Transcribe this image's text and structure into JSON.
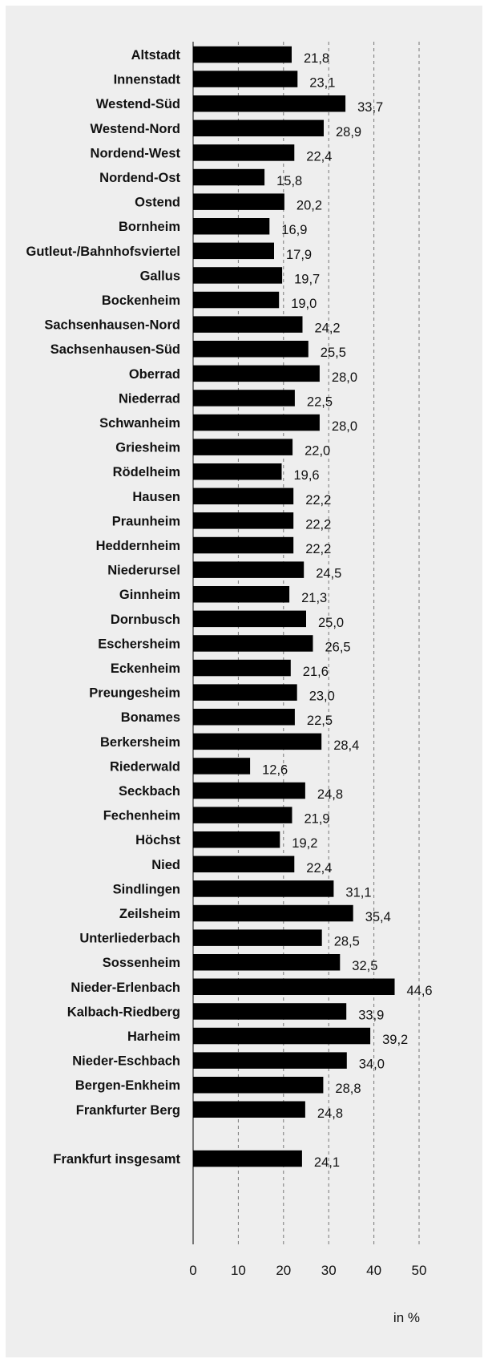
{
  "chart_data": {
    "type": "bar",
    "orientation": "horizontal",
    "categories": [
      "Altstadt",
      "Innenstadt",
      "Westend-Süd",
      "Westend-Nord",
      "Nordend-West",
      "Nordend-Ost",
      "Ostend",
      "Bornheim",
      "Gutleut-/Bahnhofsviertel",
      "Gallus",
      "Bockenheim",
      "Sachsenhausen-Nord",
      "Sachsenhausen-Süd",
      "Oberrad",
      "Niederrad",
      "Schwanheim",
      "Griesheim",
      "Rödelheim",
      "Hausen",
      "Praunheim",
      "Heddernheim",
      "Niederursel",
      "Ginnheim",
      "Dornbusch",
      "Eschersheim",
      "Eckenheim",
      "Preungesheim",
      "Bonames",
      "Berkersheim",
      "Riederwald",
      "Seckbach",
      "Fechenheim",
      "Höchst",
      "Nied",
      "Sindlingen",
      "Zeilsheim",
      "Unterliederbach",
      "Sossenheim",
      "Nieder-Erlenbach",
      "Kalbach-Riedberg",
      "Harheim",
      "Nieder-Eschbach",
      "Bergen-Enkheim",
      "Frankfurter Berg",
      "Frankfurt insgesamt"
    ],
    "values": [
      21.8,
      23.1,
      33.7,
      28.9,
      22.4,
      15.8,
      20.2,
      16.9,
      17.9,
      19.7,
      19.0,
      24.2,
      25.5,
      28.0,
      22.5,
      28.0,
      22.0,
      19.6,
      22.2,
      22.2,
      22.2,
      24.5,
      21.3,
      25.0,
      26.5,
      21.6,
      23.0,
      22.5,
      28.4,
      12.6,
      24.8,
      21.9,
      19.2,
      22.4,
      31.1,
      35.4,
      28.5,
      32.5,
      44.6,
      33.9,
      39.2,
      34.0,
      28.8,
      24.8,
      24.1
    ],
    "value_labels": [
      "21,8",
      "23,1",
      "33,7",
      "28,9",
      "22,4",
      "15,8",
      "20,2",
      "16,9",
      "17,9",
      "19,7",
      "19,0",
      "24,2",
      "25,5",
      "28,0",
      "22,5",
      "28,0",
      "22,0",
      "19,6",
      "22,2",
      "22,2",
      "22,2",
      "24,5",
      "21,3",
      "25,0",
      "26,5",
      "21,6",
      "23,0",
      "22,5",
      "28,4",
      "12,6",
      "24,8",
      "21,9",
      "19,2",
      "22,4",
      "31,1",
      "35,4",
      "28,5",
      "32,5",
      "44,6",
      "33,9",
      "39,2",
      "34,0",
      "28,8",
      "24,8",
      "24,1"
    ],
    "xlim": [
      0,
      50
    ],
    "xticks": [
      0,
      10,
      20,
      30,
      40,
      50
    ],
    "xtick_labels": [
      "0",
      "10",
      "20",
      "30",
      "40",
      "50"
    ],
    "unit_label": "in %",
    "grid": "vertical dashed",
    "bar_color": "#000000",
    "background_color": "#eeeeee",
    "title": "",
    "xlabel": "",
    "ylabel": ""
  }
}
